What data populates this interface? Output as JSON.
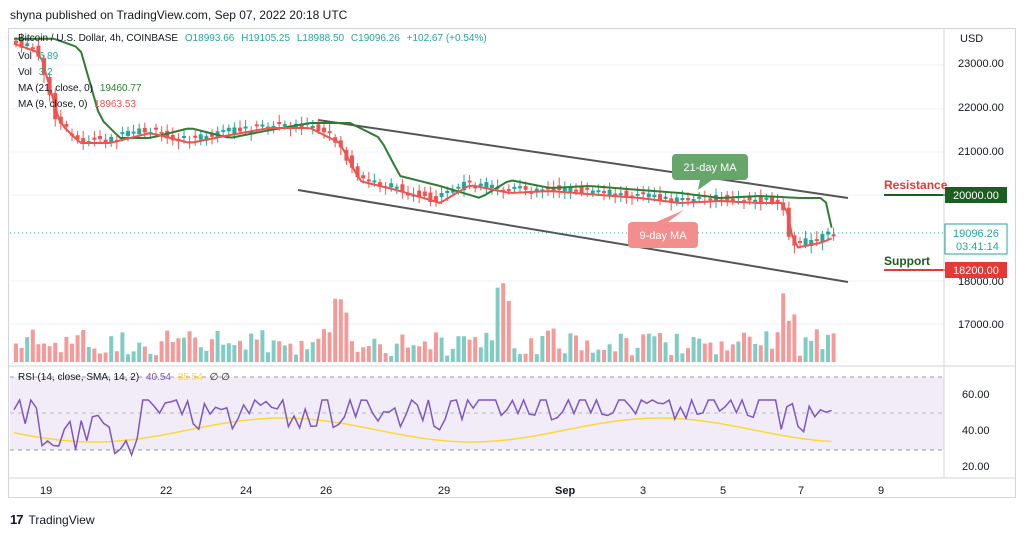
{
  "header": {
    "published_line": "shyna published on TradingView.com, Sep 07, 2022 20:18 UTC"
  },
  "symbol": {
    "name": "Bitcoin / U.S. Dollar, 4h, COINBASE",
    "open": "O18993.66",
    "high": "H19105.25",
    "low": "L18988.50",
    "close": "C19096.26",
    "change": "+102.67 (+0.54%)",
    "vol_label": "Vol",
    "vol_value": "5.89",
    "vol_label2": "Vol",
    "vol_value2": "3.2",
    "ma21_label": "MA (21, close, 0)",
    "ma21_value": "19460.77",
    "ma9_label": "MA (9, close, 0)",
    "ma9_value": "18963.53"
  },
  "axis": {
    "currency": "USD",
    "price_ticks": [
      "23000.00",
      "22000.00",
      "21000.00",
      "18000.00",
      "17000.00"
    ],
    "rsi_ticks": [
      "60.00",
      "40.00",
      "20.00"
    ],
    "date_labels": [
      "19",
      "22",
      "24",
      "26",
      "29",
      "Sep",
      "3",
      "5",
      "7",
      "9"
    ]
  },
  "price_tag": {
    "price": "19096.26",
    "countdown": "03:41:14"
  },
  "levels": {
    "resistance_label": "Resistance",
    "resistance_value": "20000.00",
    "support_label": "Support",
    "support_value": "18200.00"
  },
  "annotations": {
    "ma21": "21-day MA",
    "ma9": "9-day MA"
  },
  "rsi": {
    "label": "RSI (14, close, SMA, 14, 2)",
    "value1": "40.54",
    "value2": "35.54",
    "extra": "∅ ∅"
  },
  "footer": {
    "brand": "TradingView"
  },
  "colors": {
    "up": "#26a69a",
    "down": "#ef5350",
    "ma21": "#2e7d32",
    "ma9": "#ef5350",
    "rsi": "#7e57c2",
    "rsi_sma": "#fdd835",
    "accent_green": "#1b5e20",
    "accent_red": "#e53935"
  }
}
